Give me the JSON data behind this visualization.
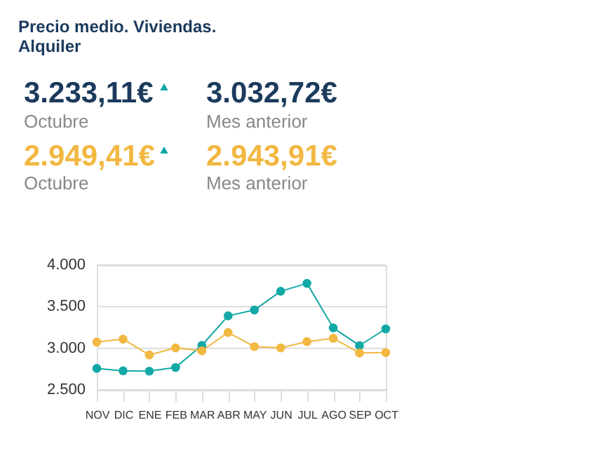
{
  "chart_data": {
    "type": "line",
    "title": "Precio medio. Viviendas.",
    "subtitle": "Alquiler",
    "annotations": [
      "3.233,11€",
      "Octubre",
      "3.032,72€",
      "Mes anterior",
      "2.949,41€",
      "Octubre",
      "2.943,91€",
      "Mes anterior"
    ],
    "categories": [
      "NOV",
      "DIC",
      "ENE",
      "FEB",
      "MAR",
      "ABR",
      "MAY",
      "JUN",
      "JUL",
      "AGO",
      "SEP",
      "OCT"
    ],
    "series": [
      {
        "color": "#12a8a6",
        "values": [
          2758,
          2730,
          2725,
          2770,
          3035,
          3390,
          3460,
          3685,
          3780,
          3245,
          3033,
          3233
        ]
      },
      {
        "color": "#f2b842",
        "values": [
          3075,
          3110,
          2920,
          3005,
          2970,
          3190,
          3020,
          3005,
          3080,
          3120,
          2944,
          2949
        ]
      }
    ],
    "ylim": [
      2500,
      4000
    ],
    "yticks": [
      {
        "value": 2500,
        "label": "2.500"
      },
      {
        "value": 3000,
        "label": "3.000"
      },
      {
        "value": 3500,
        "label": "3.500"
      },
      {
        "value": 4000,
        "label": "4.000"
      }
    ],
    "grid": "y",
    "marker": "circle",
    "line_style": "solid",
    "legend": false
  }
}
